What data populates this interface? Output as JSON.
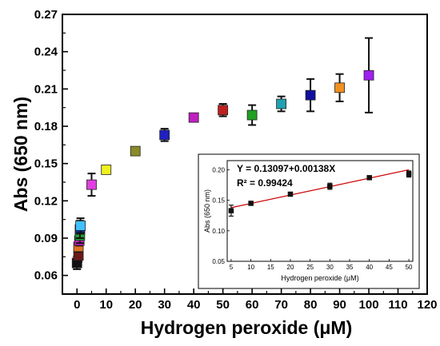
{
  "chart_data": [
    {
      "type": "scatter",
      "title": "",
      "xlabel": "Hydrogen peroxide (μM)",
      "ylabel": "Abs (650 nm)",
      "xlim": [
        -5,
        120
      ],
      "ylim": [
        0.045,
        0.27
      ],
      "x_ticks": [
        0,
        10,
        20,
        30,
        40,
        50,
        60,
        70,
        80,
        90,
        100,
        110,
        120
      ],
      "y_ticks": [
        0.06,
        0.09,
        0.12,
        0.15,
        0.18,
        0.21,
        0.24,
        0.27
      ],
      "grid": false,
      "points": [
        {
          "x": 0,
          "y": 0.07,
          "err": 0.005,
          "color": "#111111"
        },
        {
          "x": 0.5,
          "y": 0.076,
          "err": 0.005,
          "color": "#6b1a1a"
        },
        {
          "x": 0.5,
          "y": 0.083,
          "err": 0.004,
          "color": "#e07020"
        },
        {
          "x": 0.8,
          "y": 0.088,
          "err": 0.004,
          "color": "#d020d0"
        },
        {
          "x": 1,
          "y": 0.092,
          "err": 0.006,
          "color": "#20a030"
        },
        {
          "x": 1,
          "y": 0.097,
          "err": 0.007,
          "color": "#103090"
        },
        {
          "x": 1.2,
          "y": 0.1,
          "err": 0.006,
          "color": "#40c0ff"
        },
        {
          "x": 5,
          "y": 0.133,
          "err": 0.009,
          "color": "#e040e0"
        },
        {
          "x": 10,
          "y": 0.145,
          "err": 0.003,
          "color": "#f0f020"
        },
        {
          "x": 20,
          "y": 0.16,
          "err": 0.003,
          "color": "#8a8a2a"
        },
        {
          "x": 30,
          "y": 0.173,
          "err": 0.005,
          "color": "#2020c0"
        },
        {
          "x": 40,
          "y": 0.187,
          "err": 0.002,
          "color": "#c020c0"
        },
        {
          "x": 50,
          "y": 0.193,
          "err": 0.005,
          "color": "#c02020"
        },
        {
          "x": 60,
          "y": 0.189,
          "err": 0.008,
          "color": "#20a020"
        },
        {
          "x": 70,
          "y": 0.198,
          "err": 0.006,
          "color": "#20a0b0"
        },
        {
          "x": 80,
          "y": 0.205,
          "err": 0.013,
          "color": "#1010a0"
        },
        {
          "x": 90,
          "y": 0.211,
          "err": 0.011,
          "color": "#f09020"
        },
        {
          "x": 100,
          "y": 0.221,
          "err": 0.03,
          "color": "#a020f0"
        }
      ]
    },
    {
      "type": "scatter",
      "title": "",
      "xlabel": "Hydrogen peroxide (μM)",
      "ylabel": "Abs (650 nm)",
      "xlim": [
        4,
        51
      ],
      "ylim": [
        0.05,
        0.215
      ],
      "x_ticks": [
        5,
        10,
        15,
        20,
        25,
        30,
        35,
        40,
        45,
        50
      ],
      "y_ticks": [
        0.05,
        0.1,
        0.15,
        0.2
      ],
      "y_tick_labels": [
        "0.05",
        "0.10",
        "0.15",
        "0.20"
      ],
      "equation": "Y = 0.13097+0.00138X",
      "r2_label": "R² = 0.99424",
      "fit": {
        "intercept": 0.13097,
        "slope": 0.00138,
        "color": "#cc0000"
      },
      "points": [
        {
          "x": 5,
          "y": 0.133,
          "err": 0.009
        },
        {
          "x": 10,
          "y": 0.145,
          "err": 0.003
        },
        {
          "x": 20,
          "y": 0.16,
          "err": 0.003
        },
        {
          "x": 30,
          "y": 0.173,
          "err": 0.005
        },
        {
          "x": 40,
          "y": 0.187,
          "err": 0.002
        },
        {
          "x": 50,
          "y": 0.193,
          "err": 0.005
        }
      ]
    }
  ]
}
